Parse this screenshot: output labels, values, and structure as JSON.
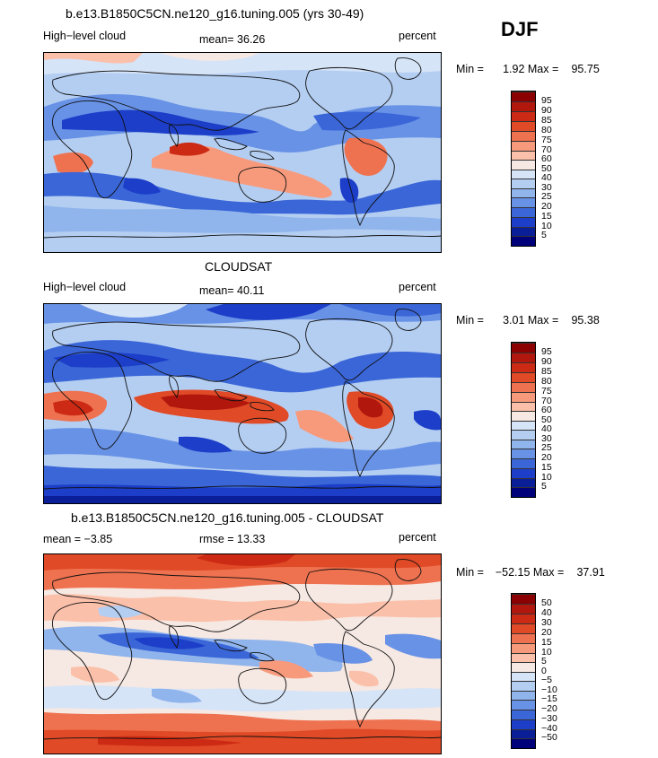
{
  "season": "DJF",
  "panels": [
    {
      "title": "b.e13.B1850C5CN.ne120_g16.tuning.005 (yrs 30-49)",
      "left_label": "High−level cloud",
      "center_label": "mean=  36.26",
      "right_label": "percent",
      "min_label": "Min =",
      "min_value": "1.92",
      "max_label": "Max =",
      "max_value": "95.75",
      "legend_levels": [
        "95",
        "90",
        "85",
        "80",
        "75",
        "70",
        "60",
        "50",
        "40",
        "30",
        "25",
        "20",
        "15",
        "10",
        "5"
      ],
      "legend_colors": [
        "#8b0000",
        "#b2170e",
        "#cc2a14",
        "#e04a26",
        "#ef7250",
        "#f79a7c",
        "#fbc0aa",
        "#f6e8e2",
        "#d6e4f8",
        "#b4cef2",
        "#90b4ec",
        "#6892e6",
        "#3a66d8",
        "#1c3ec8",
        "#0a1e98",
        "#00007a"
      ]
    },
    {
      "title": "CLOUDSAT",
      "left_label": "High−level cloud",
      "center_label": "mean=  40.11",
      "right_label": "percent",
      "min_label": "Min =",
      "min_value": "3.01",
      "max_label": "Max =",
      "max_value": "95.38",
      "legend_levels": [
        "95",
        "90",
        "85",
        "80",
        "75",
        "70",
        "60",
        "50",
        "40",
        "30",
        "25",
        "20",
        "15",
        "10",
        "5"
      ],
      "legend_colors": [
        "#8b0000",
        "#b2170e",
        "#cc2a14",
        "#e04a26",
        "#ef7250",
        "#f79a7c",
        "#fbc0aa",
        "#f6e8e2",
        "#d6e4f8",
        "#b4cef2",
        "#90b4ec",
        "#6892e6",
        "#3a66d8",
        "#1c3ec8",
        "#0a1e98",
        "#00007a"
      ]
    },
    {
      "title": "b.e13.B1850C5CN.ne120_g16.tuning.005 - CLOUDSAT",
      "left_label": "mean =  −3.85",
      "center_label": "rmse =  13.33",
      "right_label": "percent",
      "min_label": "Min =",
      "min_value": "−52.15",
      "max_label": "Max =",
      "max_value": "37.91",
      "legend_levels": [
        "50",
        "40",
        "30",
        "20",
        "15",
        "10",
        "5",
        "0",
        "−5",
        "−10",
        "−15",
        "−20",
        "−30",
        "−40",
        "−50"
      ],
      "legend_colors": [
        "#8b0000",
        "#b2170e",
        "#cc2a14",
        "#e04a26",
        "#ef7250",
        "#f79a7c",
        "#fbc0aa",
        "#f6e8e2",
        "#d6e4f8",
        "#b4cef2",
        "#90b4ec",
        "#6892e6",
        "#3a66d8",
        "#1c3ec8",
        "#0a1e98",
        "#00007a"
      ]
    }
  ]
}
